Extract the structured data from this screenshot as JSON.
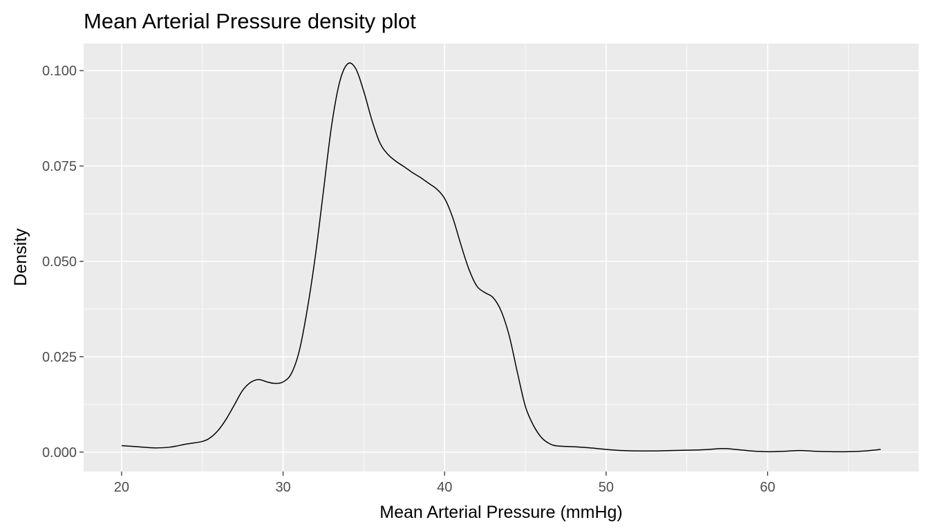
{
  "chart_data": {
    "type": "line",
    "title": "Mean Arterial Pressure density plot",
    "xlabel": "Mean Arterial Pressure (mmHg)",
    "ylabel": "Density",
    "xlim": [
      17.65,
      69.35
    ],
    "ylim": [
      -0.0051,
      0.1071
    ],
    "x_ticks": [
      20,
      30,
      40,
      50,
      60
    ],
    "x_tick_labels": [
      "20",
      "30",
      "40",
      "50",
      "60"
    ],
    "y_ticks": [
      0,
      0.025,
      0.05,
      0.075,
      0.1
    ],
    "y_tick_labels": [
      "0.000",
      "0.025",
      "0.050",
      "0.075",
      "0.100"
    ],
    "grid": true,
    "legend": "none",
    "colors": {
      "panel": "#ebebeb",
      "grid": "#ffffff",
      "line": "#000000",
      "tick_text": "#4d4d4d"
    },
    "series": [
      {
        "x": [
          20.0,
          21.0,
          22.0,
          23.0,
          24.0,
          25.0,
          25.5,
          26.0,
          26.5,
          27.0,
          27.5,
          28.0,
          28.5,
          29.0,
          29.5,
          30.0,
          30.5,
          31.0,
          31.5,
          32.0,
          32.5,
          33.0,
          33.5,
          34.0,
          34.5,
          35.0,
          35.5,
          36.0,
          36.5,
          37.0,
          37.5,
          38.0,
          38.5,
          39.0,
          39.5,
          40.0,
          40.5,
          41.0,
          41.5,
          42.0,
          42.5,
          43.0,
          43.5,
          44.0,
          44.5,
          45.0,
          45.5,
          46.0,
          46.5,
          47.0,
          48.0,
          49.0,
          50.0,
          51.0,
          52.0,
          53.0,
          54.0,
          55.0,
          56.0,
          57.0,
          57.5,
          58.0,
          59.0,
          60.0,
          61.0,
          62.0,
          63.0,
          64.0,
          65.0,
          66.0,
          67.0
        ],
        "y": [
          0.0017,
          0.0014,
          0.0011,
          0.0013,
          0.0021,
          0.0028,
          0.0038,
          0.0058,
          0.0088,
          0.0125,
          0.0162,
          0.0183,
          0.019,
          0.0184,
          0.018,
          0.0184,
          0.0205,
          0.0265,
          0.0375,
          0.0515,
          0.0685,
          0.0855,
          0.097,
          0.1018,
          0.1005,
          0.0945,
          0.087,
          0.081,
          0.078,
          0.0762,
          0.0748,
          0.0733,
          0.072,
          0.0705,
          0.069,
          0.0665,
          0.0615,
          0.0545,
          0.048,
          0.0435,
          0.0418,
          0.0405,
          0.037,
          0.0305,
          0.021,
          0.012,
          0.007,
          0.0038,
          0.0022,
          0.0016,
          0.0014,
          0.0011,
          0.0007,
          0.0004,
          0.0003,
          0.0003,
          0.0004,
          0.0005,
          0.0006,
          0.0009,
          0.0009,
          0.0007,
          0.0003,
          0.0001,
          0.0002,
          0.0004,
          0.0002,
          0.0001,
          0.0001,
          0.0003,
          0.0007
        ]
      }
    ]
  }
}
